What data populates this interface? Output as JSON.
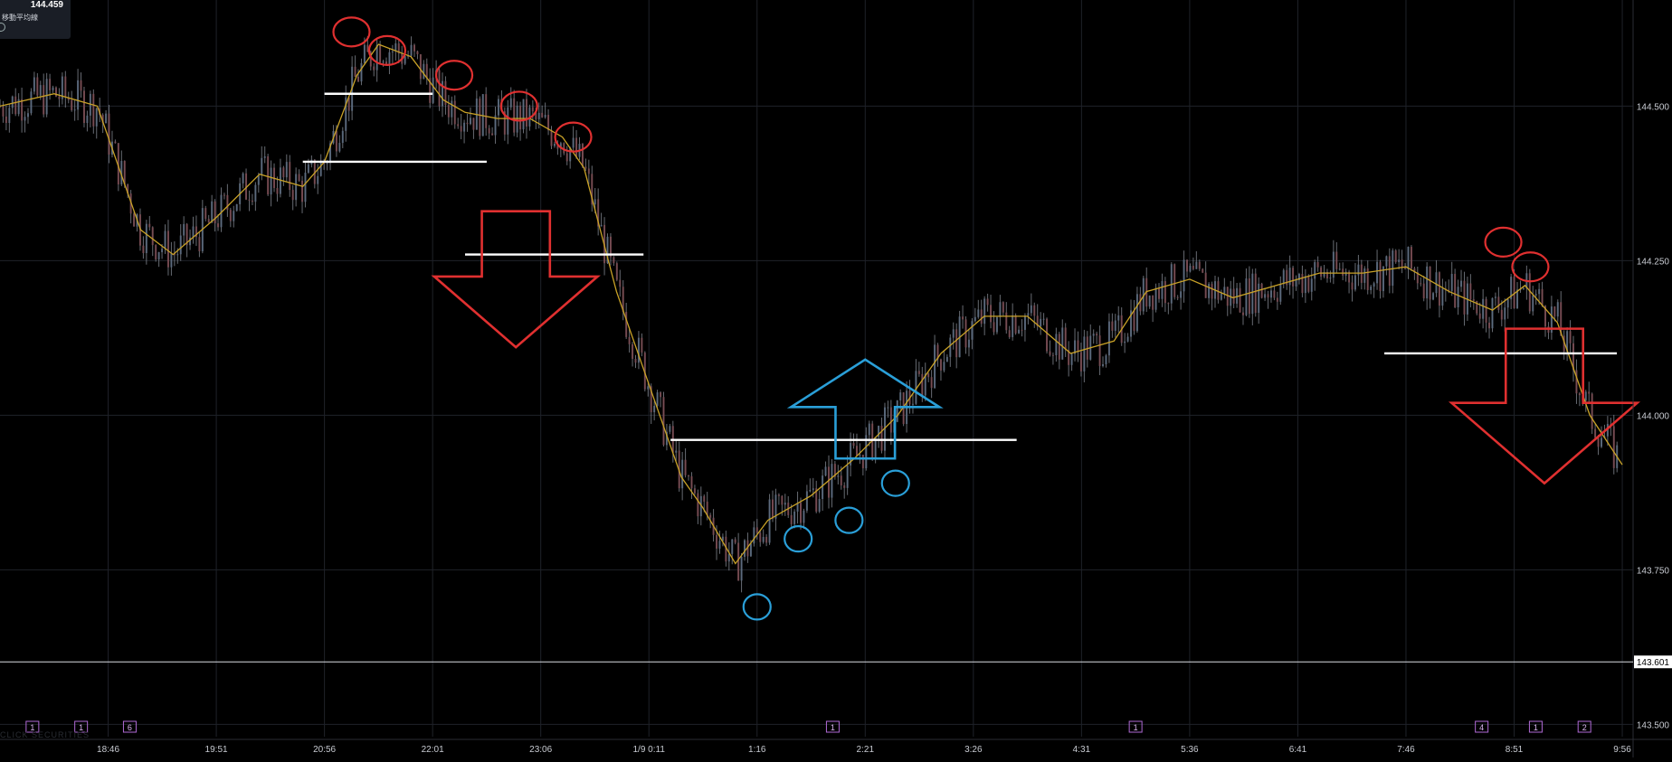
{
  "header": {
    "last_price": "144.459",
    "indicator_label": "移動平均線"
  },
  "watermark": "CLICK SECURITIES",
  "price_marker": "143.601",
  "colors": {
    "background": "#000000",
    "grid": "#1f2229",
    "candle": "#8a8f99",
    "ma_line": "#c9a227",
    "resistance": "#ffffff",
    "bearish_annotation": "#e03030",
    "bullish_annotation": "#2a9fd8"
  },
  "chart_data": {
    "type": "candlestick",
    "symbol_note": "USD/JPY intraday",
    "x_tick_labels": [
      "18:46",
      "19:51",
      "20:56",
      "22:01",
      "23:06",
      "1/9 0:11",
      "1:16",
      "2:21",
      "3:26",
      "4:31",
      "5:36",
      "6:41",
      "7:46",
      "8:51",
      "9:56"
    ],
    "y_tick_labels": [
      "144.500",
      "144.250",
      "144.000",
      "143.750",
      "143.500"
    ],
    "ylim": [
      143.48,
      144.66
    ],
    "xlim": [
      0,
      15.1
    ],
    "price_line": 143.601,
    "moving_average_path": [
      [
        0,
        144.5
      ],
      [
        0.5,
        144.52
      ],
      [
        0.9,
        144.5
      ],
      [
        1.3,
        144.3
      ],
      [
        1.6,
        144.26
      ],
      [
        2.0,
        144.32
      ],
      [
        2.4,
        144.39
      ],
      [
        2.8,
        144.37
      ],
      [
        3.0,
        144.41
      ],
      [
        3.3,
        144.55
      ],
      [
        3.5,
        144.6
      ],
      [
        3.8,
        144.58
      ],
      [
        4.1,
        144.51
      ],
      [
        4.3,
        144.49
      ],
      [
        4.6,
        144.48
      ],
      [
        4.9,
        144.48
      ],
      [
        5.2,
        144.45
      ],
      [
        5.4,
        144.4
      ],
      [
        5.7,
        144.2
      ],
      [
        6.0,
        144.05
      ],
      [
        6.3,
        143.9
      ],
      [
        6.5,
        143.85
      ],
      [
        6.8,
        143.76
      ],
      [
        7.1,
        143.83
      ],
      [
        7.5,
        143.87
      ],
      [
        7.9,
        143.93
      ],
      [
        8.3,
        144.0
      ],
      [
        8.7,
        144.1
      ],
      [
        9.1,
        144.16
      ],
      [
        9.5,
        144.16
      ],
      [
        9.9,
        144.1
      ],
      [
        10.3,
        144.12
      ],
      [
        10.6,
        144.2
      ],
      [
        11.0,
        144.22
      ],
      [
        11.4,
        144.19
      ],
      [
        11.8,
        144.21
      ],
      [
        12.2,
        144.23
      ],
      [
        12.6,
        144.23
      ],
      [
        13.0,
        144.24
      ],
      [
        13.4,
        144.2
      ],
      [
        13.8,
        144.17
      ],
      [
        14.1,
        144.21
      ],
      [
        14.4,
        144.15
      ],
      [
        14.7,
        144.0
      ],
      [
        15.0,
        143.92
      ]
    ],
    "resistance_lines": [
      {
        "x0": 3.0,
        "x1": 4.0,
        "y": 144.52
      },
      {
        "x0": 2.8,
        "x1": 4.5,
        "y": 144.41
      },
      {
        "x0": 4.3,
        "x1": 5.95,
        "y": 144.26
      },
      {
        "x0": 6.2,
        "x1": 9.4,
        "y": 143.96
      },
      {
        "x0": 12.8,
        "x1": 14.95,
        "y": 144.1
      }
    ],
    "event_markers": [
      {
        "x": 0.3,
        "label": "1"
      },
      {
        "x": 0.75,
        "label": "1"
      },
      {
        "x": 1.2,
        "label": "6"
      },
      {
        "x": 7.7,
        "label": "1"
      },
      {
        "x": 10.5,
        "label": "1"
      },
      {
        "x": 13.7,
        "label": "4"
      },
      {
        "x": 14.2,
        "label": "1"
      },
      {
        "x": 14.65,
        "label": "2"
      }
    ],
    "annotations": {
      "bearish_circles": [
        {
          "x": 3.25,
          "y": 144.62
        },
        {
          "x": 3.58,
          "y": 144.59
        },
        {
          "x": 4.2,
          "y": 144.55
        },
        {
          "x": 4.8,
          "y": 144.5
        },
        {
          "x": 5.3,
          "y": 144.45
        },
        {
          "x": 13.9,
          "y": 144.28
        },
        {
          "x": 14.15,
          "y": 144.24
        }
      ],
      "bullish_circles": [
        {
          "x": 7.0,
          "y": 143.69
        },
        {
          "x": 7.38,
          "y": 143.8
        },
        {
          "x": 7.85,
          "y": 143.83
        },
        {
          "x": 8.28,
          "y": 143.89
        }
      ],
      "down_arrows": [
        {
          "x_center": 4.77,
          "top": 144.33,
          "tip": 144.11
        },
        {
          "x_center": 14.28,
          "top": 144.14,
          "tip": 143.89
        }
      ],
      "up_arrows": [
        {
          "x_center": 8.0,
          "bottom": 143.93,
          "tip": 144.09
        }
      ]
    }
  }
}
